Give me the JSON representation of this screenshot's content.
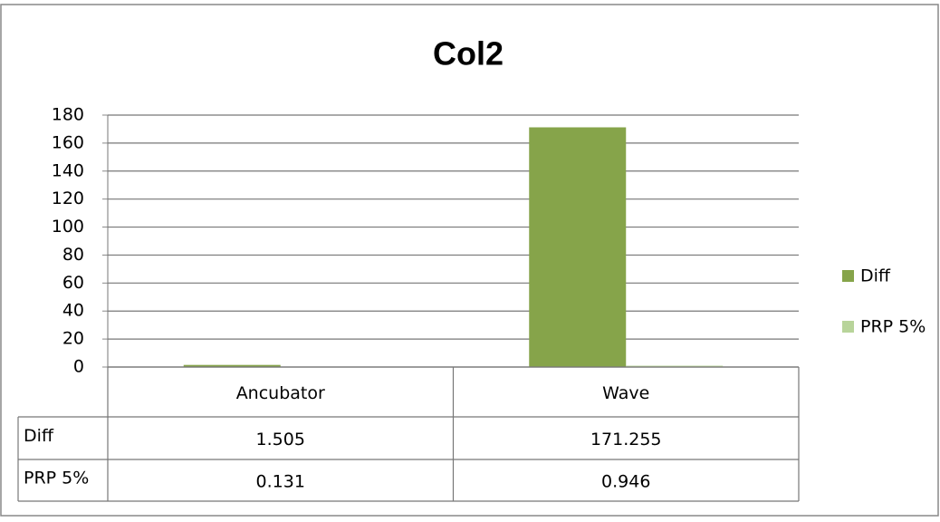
{
  "chart_data": {
    "type": "bar",
    "title": "Col2",
    "categories": [
      "Ancubator",
      "Wave"
    ],
    "series": [
      {
        "name": "Diff",
        "color": "#86a44a",
        "values": [
          1.505,
          171.255
        ]
      },
      {
        "name": "PRP 5%",
        "color": "#b8d49a",
        "values": [
          0.131,
          0.946
        ]
      }
    ],
    "ylim": [
      0,
      180
    ],
    "yticks": [
      0,
      20,
      40,
      60,
      80,
      100,
      120,
      140,
      160,
      180
    ],
    "grid": true,
    "legend": "right",
    "data_table": true
  }
}
